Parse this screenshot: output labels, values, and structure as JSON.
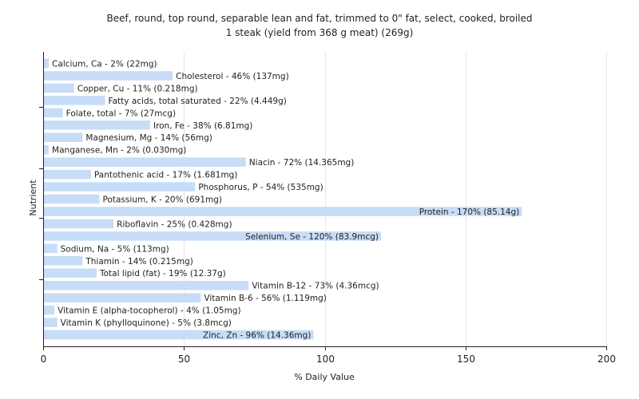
{
  "chart_data": {
    "type": "bar",
    "orientation": "horizontal",
    "title": "Beef, round, top round, separable lean and fat, trimmed to 0\" fat, select, cooked, broiled",
    "subtitle": "1 steak (yield from 368 g meat) (269g)",
    "xlabel": "% Daily Value",
    "ylabel": "Nutrient",
    "xlim": [
      0,
      200
    ],
    "x_ticks": [
      0,
      50,
      100,
      150,
      200
    ],
    "grid": true,
    "bar_color": "#c6dcf7",
    "categories": [
      "Calcium, Ca",
      "Cholesterol",
      "Copper, Cu",
      "Fatty acids, total saturated",
      "Folate, total",
      "Iron, Fe",
      "Magnesium, Mg",
      "Manganese, Mn",
      "Niacin",
      "Pantothenic acid",
      "Phosphorus, P",
      "Potassium, K",
      "Protein",
      "Riboflavin",
      "Selenium, Se",
      "Sodium, Na",
      "Thiamin",
      "Total lipid (fat)",
      "Vitamin B-12",
      "Vitamin B-6",
      "Vitamin E (alpha-tocopherol)",
      "Vitamin K (phylloquinone)",
      "Zinc, Zn"
    ],
    "values": [
      2,
      46,
      11,
      22,
      7,
      38,
      14,
      2,
      72,
      17,
      54,
      20,
      170,
      25,
      120,
      5,
      14,
      19,
      73,
      56,
      4,
      5,
      96
    ],
    "labels": [
      "Calcium, Ca - 2% (22mg)",
      "Cholesterol - 46% (137mg)",
      "Copper, Cu - 11% (0.218mg)",
      "Fatty acids, total saturated - 22% (4.449g)",
      "Folate, total - 7% (27mcg)",
      "Iron, Fe - 38% (6.81mg)",
      "Magnesium, Mg - 14% (56mg)",
      "Manganese, Mn - 2% (0.030mg)",
      "Niacin - 72% (14.365mg)",
      "Pantothenic acid - 17% (1.681mg)",
      "Phosphorus, P - 54% (535mg)",
      "Potassium, K - 20% (691mg)",
      "Protein - 170% (85.14g)",
      "Riboflavin - 25% (0.428mg)",
      "Selenium, Se - 120% (83.9mcg)",
      "Sodium, Na - 5% (113mg)",
      "Thiamin - 14% (0.215mg)",
      "Total lipid (fat) - 19% (12.37g)",
      "Vitamin B-12 - 73% (4.36mcg)",
      "Vitamin B-6 - 56% (1.119mg)",
      "Vitamin E (alpha-tocopherol) - 4% (1.05mg)",
      "Vitamin K (phylloquinone) - 5% (3.8mcg)",
      "Zinc, Zn - 96% (14.36mg)"
    ]
  }
}
